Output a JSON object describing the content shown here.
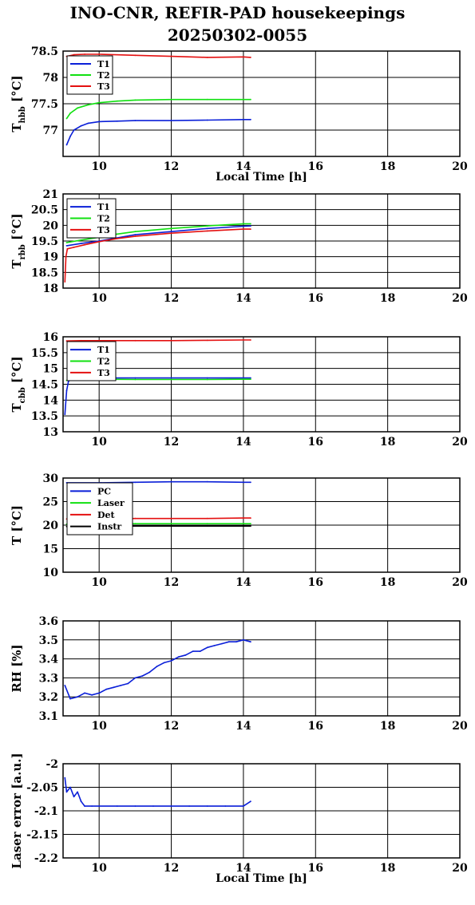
{
  "figure": {
    "title_line1": "INO-CNR, REFIR-PAD housekeepings",
    "title_line2": "20250302-0055"
  },
  "colors": {
    "blue": "#0a1fd8",
    "green": "#10e010",
    "red": "#e41010",
    "black": "#000000"
  },
  "chart_data": [
    {
      "type": "line",
      "ylabel_main": "T",
      "ylabel_sub": "hbb",
      "ylabel_unit": "[°C]",
      "xlabel": "Local Time [h]",
      "xlim": [
        9,
        20
      ],
      "ylim": [
        76.5,
        78.5
      ],
      "xticks": [
        10,
        12,
        14,
        16,
        18,
        20
      ],
      "yticks": [
        77,
        77.5,
        78,
        78.5
      ],
      "grid": true,
      "legend": "top-left",
      "series": [
        {
          "name": "T1",
          "color": "blue",
          "x": [
            9.1,
            9.2,
            9.3,
            9.5,
            9.7,
            10.0,
            10.5,
            11,
            12,
            13,
            14,
            14.2
          ],
          "y": [
            76.72,
            76.88,
            77.0,
            77.08,
            77.13,
            77.16,
            77.17,
            77.18,
            77.18,
            77.19,
            77.2,
            77.2
          ]
        },
        {
          "name": "T2",
          "color": "green",
          "x": [
            9.1,
            9.2,
            9.4,
            9.7,
            10.0,
            10.5,
            11,
            12,
            13,
            14,
            14.2
          ],
          "y": [
            77.22,
            77.32,
            77.42,
            77.48,
            77.52,
            77.55,
            77.57,
            77.58,
            77.58,
            77.58,
            77.58
          ]
        },
        {
          "name": "T3",
          "color": "red",
          "x": [
            9.1,
            9.3,
            9.6,
            10,
            11,
            12,
            13,
            14,
            14.2
          ],
          "y": [
            78.4,
            78.43,
            78.44,
            78.44,
            78.42,
            78.4,
            78.38,
            78.39,
            78.38
          ]
        }
      ]
    },
    {
      "type": "line",
      "ylabel_main": "T",
      "ylabel_sub": "rbb",
      "ylabel_unit": "[°C]",
      "xlabel": "",
      "xlim": [
        9,
        20
      ],
      "ylim": [
        18,
        21
      ],
      "xticks": [
        10,
        12,
        14,
        16,
        18,
        20
      ],
      "yticks": [
        18,
        18.5,
        19,
        19.5,
        20,
        20.5,
        21
      ],
      "grid": true,
      "legend": "top-left",
      "series": [
        {
          "name": "T1",
          "color": "blue",
          "x": [
            9.1,
            9.5,
            10,
            10.5,
            11,
            12,
            13,
            14,
            14.2
          ],
          "y": [
            19.35,
            19.42,
            19.5,
            19.6,
            19.7,
            19.8,
            19.9,
            19.97,
            19.98
          ]
        },
        {
          "name": "T2",
          "color": "green",
          "x": [
            9.1,
            9.5,
            10,
            10.5,
            11,
            12,
            13,
            14,
            14.2
          ],
          "y": [
            19.45,
            19.53,
            19.62,
            19.72,
            19.8,
            19.9,
            19.98,
            20.05,
            20.05
          ]
        },
        {
          "name": "T3",
          "color": "red",
          "x": [
            9.05,
            9.08,
            9.12,
            9.3,
            9.6,
            10,
            10.5,
            11,
            12,
            13,
            14,
            14.2
          ],
          "y": [
            18.2,
            19.0,
            19.25,
            19.3,
            19.38,
            19.48,
            19.58,
            19.65,
            19.75,
            19.82,
            19.88,
            19.88
          ]
        }
      ]
    },
    {
      "type": "line",
      "ylabel_main": "T",
      "ylabel_sub": "cbb",
      "ylabel_unit": "[°C]",
      "xlabel": "",
      "xlim": [
        9,
        20
      ],
      "ylim": [
        13,
        16
      ],
      "xticks": [
        10,
        12,
        14,
        16,
        18,
        20
      ],
      "yticks": [
        13,
        13.5,
        14,
        14.5,
        15,
        15.5,
        16
      ],
      "grid": true,
      "legend": "top-left",
      "series": [
        {
          "name": "T1",
          "color": "blue",
          "x": [
            9.05,
            9.1,
            9.15,
            9.3,
            10,
            11,
            12,
            13,
            14,
            14.2
          ],
          "y": [
            13.55,
            14.3,
            14.6,
            14.68,
            14.7,
            14.7,
            14.7,
            14.7,
            14.7,
            14.7
          ]
        },
        {
          "name": "T2",
          "color": "green",
          "x": [
            9.1,
            9.3,
            10,
            11,
            12,
            13,
            14,
            14.2
          ],
          "y": [
            14.62,
            14.66,
            14.66,
            14.65,
            14.65,
            14.65,
            14.66,
            14.66
          ]
        },
        {
          "name": "T3",
          "color": "red",
          "x": [
            9.1,
            9.5,
            10,
            11,
            12,
            13,
            14,
            14.2
          ],
          "y": [
            15.87,
            15.88,
            15.88,
            15.88,
            15.88,
            15.89,
            15.9,
            15.9
          ]
        }
      ]
    },
    {
      "type": "line",
      "ylabel_main": "T [°C]",
      "ylabel_sub": "",
      "ylabel_unit": "",
      "xlabel": "",
      "xlim": [
        9,
        20
      ],
      "ylim": [
        10,
        30
      ],
      "xticks": [
        10,
        12,
        14,
        16,
        18,
        20
      ],
      "yticks": [
        10,
        15,
        20,
        25,
        30
      ],
      "grid": true,
      "legend": "top-left",
      "series": [
        {
          "name": "PC",
          "color": "blue",
          "x": [
            9.1,
            10,
            11,
            12,
            13,
            14,
            14.2
          ],
          "y": [
            29.0,
            29.0,
            29.1,
            29.2,
            29.2,
            29.1,
            29.1
          ]
        },
        {
          "name": "Laser",
          "color": "green",
          "x": [
            9.1,
            10,
            11,
            12,
            13,
            14,
            14.2
          ],
          "y": [
            20.2,
            20.2,
            20.3,
            20.3,
            20.3,
            20.3,
            20.3
          ]
        },
        {
          "name": "Det",
          "color": "red",
          "x": [
            9.1,
            10,
            11,
            12,
            13,
            14,
            14.2
          ],
          "y": [
            21.3,
            21.3,
            21.4,
            21.4,
            21.4,
            21.5,
            21.5
          ]
        },
        {
          "name": "Instr",
          "color": "black",
          "x": [
            9.1,
            10,
            11,
            12,
            13,
            14,
            14.2
          ],
          "y": [
            19.7,
            19.7,
            19.8,
            19.8,
            19.8,
            19.8,
            19.8
          ]
        }
      ]
    },
    {
      "type": "line",
      "ylabel_main": "RH [%]",
      "ylabel_sub": "",
      "ylabel_unit": "",
      "xlabel": "",
      "xlim": [
        9,
        20
      ],
      "ylim": [
        3.1,
        3.6
      ],
      "xticks": [
        10,
        12,
        14,
        16,
        18,
        20
      ],
      "yticks": [
        3.1,
        3.2,
        3.3,
        3.4,
        3.5,
        3.6
      ],
      "grid": true,
      "legend": "none",
      "series": [
        {
          "name": "",
          "color": "blue",
          "x": [
            9.05,
            9.2,
            9.4,
            9.6,
            9.8,
            10.0,
            10.2,
            10.4,
            10.6,
            10.8,
            11.0,
            11.2,
            11.4,
            11.6,
            11.8,
            12.0,
            12.2,
            12.4,
            12.6,
            12.8,
            13.0,
            13.2,
            13.4,
            13.6,
            13.8,
            14.0,
            14.2
          ],
          "y": [
            3.26,
            3.19,
            3.2,
            3.22,
            3.21,
            3.22,
            3.24,
            3.25,
            3.26,
            3.27,
            3.3,
            3.31,
            3.33,
            3.36,
            3.38,
            3.39,
            3.41,
            3.42,
            3.44,
            3.44,
            3.46,
            3.47,
            3.48,
            3.49,
            3.49,
            3.5,
            3.49
          ]
        }
      ]
    },
    {
      "type": "line",
      "ylabel_main": "Laser error [a.u.]",
      "ylabel_sub": "",
      "ylabel_unit": "",
      "xlabel": "Local Time [h]",
      "xlim": [
        9,
        20
      ],
      "ylim": [
        -2.2,
        -2.0
      ],
      "xticks": [
        10,
        12,
        14,
        16,
        18,
        20
      ],
      "yticks": [
        -2.2,
        -2.15,
        -2.1,
        -2.05,
        -2.0
      ],
      "grid": true,
      "legend": "none",
      "series": [
        {
          "name": "",
          "color": "blue",
          "x": [
            9.05,
            9.1,
            9.2,
            9.3,
            9.4,
            9.5,
            9.6,
            9.8,
            10,
            10.5,
            11,
            11.5,
            12,
            12.5,
            13,
            13.5,
            14,
            14.2
          ],
          "y": [
            -2.03,
            -2.06,
            -2.05,
            -2.07,
            -2.06,
            -2.08,
            -2.09,
            -2.09,
            -2.09,
            -2.09,
            -2.09,
            -2.09,
            -2.09,
            -2.09,
            -2.09,
            -2.09,
            -2.09,
            -2.08
          ]
        }
      ]
    }
  ]
}
